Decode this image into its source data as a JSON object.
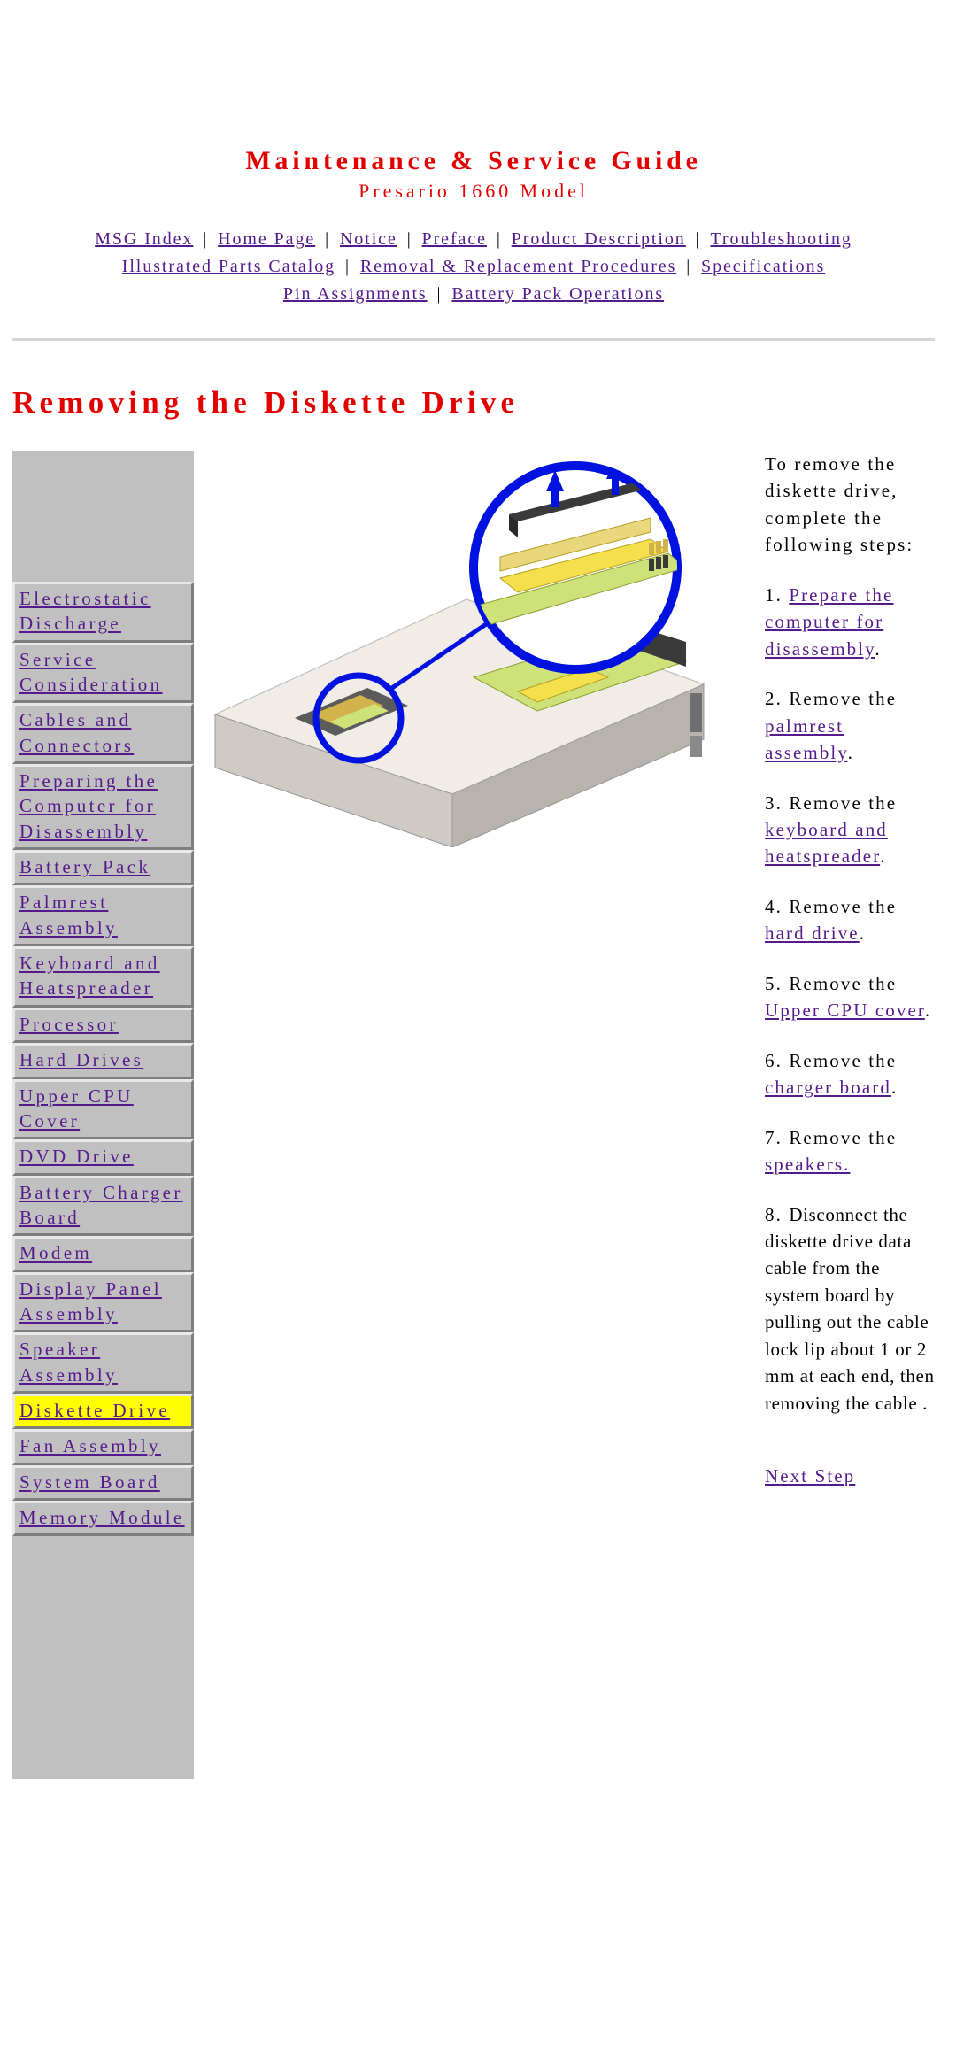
{
  "header": {
    "title": "Maintenance & Service Guide",
    "subtitle": "Presario 1660 Model"
  },
  "topnav": {
    "rows": [
      [
        "MSG Index",
        "Home Page",
        "Notice",
        "Preface",
        "Product Description",
        "Troubleshooting"
      ],
      [
        "Illustrated Parts Catalog",
        "Removal & Replacement Procedures",
        "Specifications"
      ],
      [
        "Pin Assignments",
        "Battery Pack Operations"
      ]
    ]
  },
  "section_title": "Removing the Diskette Drive",
  "leftnav": {
    "items": [
      {
        "label": "Electrostatic Discharge",
        "active": false
      },
      {
        "label": "Service Consideration",
        "active": false
      },
      {
        "label": "Cables and Connectors",
        "active": false
      },
      {
        "label": "Preparing the Computer for Disassembly",
        "active": false
      },
      {
        "label": "Battery Pack",
        "active": false
      },
      {
        "label": "Palmrest Assembly",
        "active": false
      },
      {
        "label": "Keyboard and Heatspreader",
        "active": false
      },
      {
        "label": "Processor",
        "active": false
      },
      {
        "label": "Hard Drives",
        "active": false
      },
      {
        "label": "Upper CPU Cover",
        "active": false
      },
      {
        "label": "DVD Drive",
        "active": false
      },
      {
        "label": "Battery Charger Board",
        "active": false
      },
      {
        "label": "Modem",
        "active": false
      },
      {
        "label": "Display Panel Assembly",
        "active": false
      },
      {
        "label": "Speaker Assembly",
        "active": false
      },
      {
        "label": "Diskette Drive",
        "active": true
      },
      {
        "label": "Fan Assembly",
        "active": false
      },
      {
        "label": "System Board",
        "active": false
      },
      {
        "label": "Memory Module",
        "active": false
      }
    ]
  },
  "instructions": {
    "intro": "To remove the diskette drive, complete the following steps:",
    "steps": [
      {
        "num": "1. ",
        "pre": "",
        "link": "Prepare the computer for disassembly",
        "post": "."
      },
      {
        "num": "2. ",
        "pre": "Remove the ",
        "link": "palmrest assembly",
        "post": "."
      },
      {
        "num": "3. ",
        "pre": "Remove the ",
        "link": "keyboard and heatspreader",
        "post": "."
      },
      {
        "num": "4. ",
        "pre": "Remove the ",
        "link": "hard drive",
        "post": "."
      },
      {
        "num": "5. ",
        "pre": "Remove the ",
        "link": "Upper CPU cover",
        "post": "."
      },
      {
        "num": "6. ",
        "pre": "Remove the ",
        "link": "charger board",
        "post": "."
      },
      {
        "num": "7. ",
        "pre": "Remove the ",
        "link": "speakers.",
        "post": ""
      }
    ],
    "final_num": "8. ",
    "final_text": "Disconnect the diskette drive data cable from the system board by pulling out the cable lock lip about 1 or 2 mm at each end, then removing the cable .",
    "next": "Next Step"
  },
  "figure_svg": {
    "bg": "#ffffff",
    "base_fill": "#e6e1dc",
    "base_stroke": "#9a9a9a",
    "board_green": "#cfe27a",
    "slot_yellow": "#f4e04d",
    "cable_dark": "#3a3a3a",
    "circle_stroke": "#0012e0",
    "arrow_fill": "#0012e0",
    "pins_gold": "#d2b24a"
  }
}
